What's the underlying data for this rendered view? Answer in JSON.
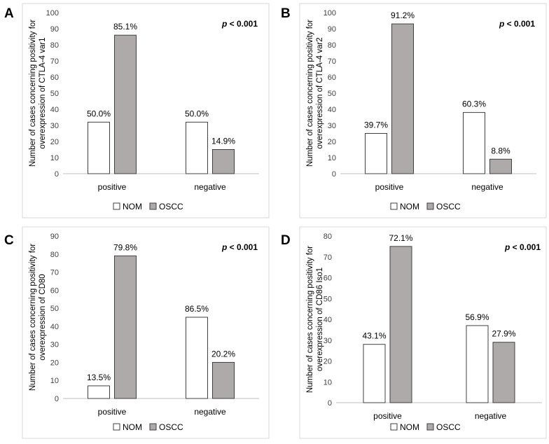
{
  "colors": {
    "nom_fill": "#ffffff",
    "oscc_fill": "#aeaaaa",
    "bar_stroke": "#404040",
    "axis": "#bfbfbf",
    "frame": "#d9d9d9",
    "text": "#404040"
  },
  "chart_data": [
    {
      "panel": "A",
      "type": "bar",
      "significance": "p < 0.001",
      "categories": [
        "positive",
        "negative"
      ],
      "series": [
        {
          "name": "NOM",
          "values": [
            32,
            32
          ],
          "labels": [
            "50.0%",
            "50.0%"
          ]
        },
        {
          "name": "OSCC",
          "values": [
            86,
            15
          ],
          "labels": [
            "85.1%",
            "14.9%"
          ]
        }
      ],
      "ylabel_line1": "Number of cases concerning positivity for",
      "ylabel_line2": "overexpression of CTLA-4 var1",
      "ylim": [
        0,
        100
      ],
      "yticks": [
        0,
        10,
        20,
        30,
        40,
        50,
        60,
        70,
        80,
        90,
        100
      ],
      "legend": "bottom-center"
    },
    {
      "panel": "B",
      "type": "bar",
      "significance": "p < 0.001",
      "categories": [
        "positive",
        "negative"
      ],
      "series": [
        {
          "name": "NOM",
          "values": [
            25,
            38
          ],
          "labels": [
            "39.7%",
            "60.3%"
          ]
        },
        {
          "name": "OSCC",
          "values": [
            93,
            9
          ],
          "labels": [
            "91.2%",
            "8.8%"
          ]
        }
      ],
      "ylabel_line1": "Number of cases concerning positivity for",
      "ylabel_line2": "overexpression of CTLA-4 var2",
      "ylim": [
        0,
        100
      ],
      "yticks": [
        0,
        10,
        20,
        30,
        40,
        50,
        60,
        70,
        80,
        90,
        100
      ],
      "legend": "bottom-center"
    },
    {
      "panel": "C",
      "type": "bar",
      "significance": "p < 0.001",
      "categories": [
        "positive",
        "negative"
      ],
      "series": [
        {
          "name": "NOM",
          "values": [
            7,
            45
          ],
          "labels": [
            "13.5%",
            "86.5%"
          ]
        },
        {
          "name": "OSCC",
          "values": [
            79,
            20
          ],
          "labels": [
            "79.8%",
            "20.2%"
          ]
        }
      ],
      "ylabel_line1": "Number of cases concerning positivity for",
      "ylabel_line2": "overexpression of CD80",
      "ylim": [
        0,
        90
      ],
      "yticks": [
        0,
        10,
        20,
        30,
        40,
        50,
        60,
        70,
        80,
        90
      ],
      "legend": "bottom-center"
    },
    {
      "panel": "D",
      "type": "bar",
      "significance": "p < 0.001",
      "categories": [
        "positive",
        "negative"
      ],
      "series": [
        {
          "name": "NOM",
          "values": [
            28,
            37
          ],
          "labels": [
            "43.1%",
            "56.9%"
          ]
        },
        {
          "name": "OSCC",
          "values": [
            75,
            29
          ],
          "labels": [
            "72.1%",
            "27.9%"
          ]
        }
      ],
      "ylabel_line1": "Number of cases concerning positivity for",
      "ylabel_line2": "overexpression of CD86 Iso1",
      "ylim": [
        0,
        80
      ],
      "yticks": [
        0,
        10,
        20,
        30,
        40,
        50,
        60,
        70,
        80
      ],
      "legend": "bottom-center"
    }
  ]
}
